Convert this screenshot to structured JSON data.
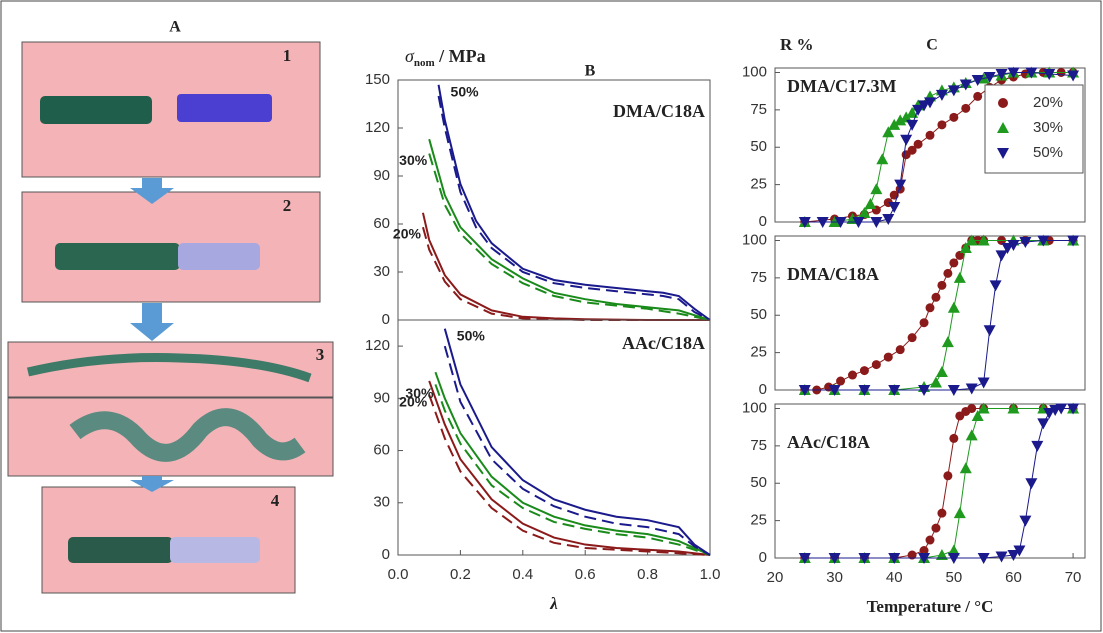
{
  "panel_a": {
    "title": "A",
    "steps": [
      "1",
      "2",
      "3",
      "4"
    ]
  },
  "chart_data": [
    {
      "type": "line",
      "panel": "B",
      "label": "DMA/C18A",
      "y_label": [
        "σ",
        "nom",
        " / MPa"
      ],
      "xlim": [
        0,
        1
      ],
      "ylim": [
        0,
        150
      ],
      "yticks": [
        0,
        30,
        60,
        90,
        120,
        150
      ],
      "series": [
        {
          "name": "20%",
          "color": "#8b1a1a",
          "x": [
            0.08,
            0.1,
            0.15,
            0.2,
            0.3,
            0.4,
            0.5,
            0.6,
            0.8,
            1.0
          ],
          "values": [
            67,
            50,
            28,
            16,
            6,
            2,
            1,
            0.5,
            0,
            0
          ],
          "dashed_values": [
            58,
            44,
            24,
            13,
            4,
            1,
            0.5,
            0,
            0,
            0
          ]
        },
        {
          "name": "30%",
          "color": "#1a8a1a",
          "x": [
            0.1,
            0.15,
            0.2,
            0.3,
            0.4,
            0.5,
            0.6,
            0.7,
            0.8,
            0.9,
            0.95,
            1.0
          ],
          "values": [
            113,
            78,
            58,
            38,
            26,
            17,
            13,
            10,
            8,
            6,
            3,
            0
          ],
          "dashed_values": [
            104,
            72,
            54,
            35,
            23,
            15,
            11,
            9,
            7,
            4,
            2,
            0
          ]
        },
        {
          "name": "50%",
          "color": "#1a1a8c",
          "x": [
            0.13,
            0.15,
            0.2,
            0.25,
            0.3,
            0.4,
            0.5,
            0.6,
            0.7,
            0.8,
            0.85,
            0.9,
            0.95,
            1.0
          ],
          "values": [
            147,
            125,
            85,
            62,
            48,
            32,
            25,
            22,
            20,
            18,
            17,
            15,
            7,
            0
          ],
          "dashed_values": [
            140,
            120,
            80,
            58,
            45,
            30,
            23,
            20,
            18,
            16,
            15,
            13,
            5,
            0
          ]
        }
      ]
    },
    {
      "type": "line",
      "label": "AAc/C18A",
      "x_label": "λ",
      "xlim": [
        0,
        1
      ],
      "ylim": [
        0,
        135
      ],
      "yticks": [
        0,
        30,
        60,
        90,
        120
      ],
      "xticks": [
        {
          "value": 0,
          "label": "0.0"
        },
        0.2,
        0.4,
        0.6,
        0.8,
        {
          "value": 1,
          "label": "1.0"
        }
      ],
      "series": [
        {
          "name": "20%",
          "color": "#8b1a1a",
          "x": [
            0.1,
            0.15,
            0.2,
            0.3,
            0.4,
            0.5,
            0.6,
            0.7,
            0.8,
            0.9,
            1.0
          ],
          "values": [
            100,
            75,
            55,
            32,
            18,
            10,
            6,
            4,
            3,
            2,
            0
          ],
          "dashed_values": [
            92,
            67,
            48,
            27,
            14,
            7,
            4,
            3,
            2,
            1,
            0
          ]
        },
        {
          "name": "30%",
          "color": "#1a8a1a",
          "x": [
            0.12,
            0.15,
            0.2,
            0.3,
            0.4,
            0.5,
            0.6,
            0.7,
            0.8,
            0.9,
            1.0
          ],
          "values": [
            105,
            90,
            70,
            45,
            30,
            22,
            17,
            14,
            12,
            8,
            0
          ],
          "dashed_values": [
            98,
            83,
            64,
            40,
            27,
            19,
            15,
            12,
            10,
            6,
            0
          ]
        },
        {
          "name": "50%",
          "color": "#1a1a8c",
          "x": [
            0.15,
            0.2,
            0.3,
            0.4,
            0.5,
            0.6,
            0.7,
            0.8,
            0.9,
            0.95,
            1.0
          ],
          "values": [
            130,
            98,
            62,
            43,
            32,
            26,
            22,
            20,
            16,
            6,
            0
          ],
          "dashed_values": [
            120,
            88,
            55,
            38,
            28,
            22,
            18,
            16,
            12,
            5,
            0
          ]
        }
      ]
    },
    {
      "type": "scatter",
      "panel": "C",
      "label": "DMA/C17.3M",
      "y_label": "R %",
      "legend": "upper right",
      "xlim": [
        20,
        72
      ],
      "ylim": [
        0,
        103
      ],
      "yticks": [
        0,
        25,
        50,
        75,
        100
      ],
      "series": [
        {
          "name": "20%",
          "color": "#8b1a1a",
          "marker": "circle",
          "x": [
            25,
            30,
            33,
            35,
            37,
            39,
            40,
            41,
            42,
            43,
            44,
            46,
            48,
            50,
            52,
            54,
            56,
            58,
            60,
            62,
            65,
            68,
            70
          ],
          "values": [
            0,
            2,
            4,
            5,
            8,
            13,
            18,
            22,
            45,
            48,
            52,
            58,
            65,
            70,
            76,
            84,
            90,
            95,
            97,
            99,
            100,
            100,
            100
          ]
        },
        {
          "name": "30%",
          "color": "#1f9a1f",
          "marker": "triangle-up",
          "x": [
            25,
            30,
            33,
            35,
            36,
            37,
            38,
            39,
            40,
            41,
            42,
            43,
            44,
            46,
            48,
            50,
            52,
            55,
            58,
            60,
            63,
            66,
            70
          ],
          "values": [
            0,
            0,
            2,
            6,
            12,
            22,
            42,
            60,
            65,
            68,
            70,
            73,
            78,
            84,
            88,
            90,
            93,
            96,
            98,
            100,
            100,
            100,
            100
          ]
        },
        {
          "name": "50%",
          "color": "#1a1a8c",
          "marker": "triangle-down",
          "x": [
            25,
            28,
            31,
            34,
            37,
            39,
            40,
            41,
            42,
            43,
            44,
            45,
            46,
            48,
            50,
            52,
            54,
            56,
            58,
            60,
            63,
            66,
            70
          ],
          "values": [
            0,
            0,
            0,
            0,
            0,
            2,
            10,
            25,
            55,
            65,
            75,
            78,
            80,
            85,
            88,
            92,
            95,
            97,
            99,
            100,
            100,
            99,
            98
          ]
        }
      ]
    },
    {
      "type": "scatter",
      "label": "DMA/C18A",
      "xlim": [
        20,
        72
      ],
      "ylim": [
        0,
        103
      ],
      "yticks": [
        0,
        25,
        50,
        75,
        100
      ],
      "series": [
        {
          "color": "#8b1a1a",
          "marker": "circle",
          "x": [
            25,
            27,
            29,
            31,
            33,
            35,
            37,
            39,
            41,
            43,
            45,
            46,
            47,
            48,
            49,
            50,
            51,
            52,
            53,
            54,
            55,
            58,
            62,
            66,
            70
          ],
          "values": [
            0,
            0,
            2,
            6,
            10,
            13,
            17,
            22,
            27,
            35,
            45,
            55,
            62,
            70,
            78,
            85,
            90,
            95,
            100,
            100,
            100,
            100,
            100,
            100,
            100
          ]
        },
        {
          "color": "#1f9a1f",
          "marker": "triangle-up",
          "x": [
            25,
            30,
            35,
            40,
            45,
            47,
            48,
            49,
            50,
            51,
            52,
            53,
            55,
            60,
            65,
            70
          ],
          "values": [
            0,
            0,
            0,
            0,
            2,
            5,
            12,
            32,
            55,
            75,
            95,
            100,
            100,
            100,
            100,
            100
          ]
        },
        {
          "color": "#1a1a8c",
          "marker": "triangle-down",
          "x": [
            25,
            30,
            35,
            40,
            45,
            50,
            53,
            55,
            56,
            57,
            58,
            59,
            60,
            62,
            65,
            70
          ],
          "values": [
            0,
            0,
            0,
            0,
            0,
            0,
            1,
            5,
            40,
            70,
            90,
            95,
            97,
            99,
            100,
            100
          ]
        }
      ]
    },
    {
      "type": "scatter",
      "label": "AAc/C18A",
      "x_label": "Temperature / °C",
      "xlim": [
        20,
        72
      ],
      "ylim": [
        0,
        103
      ],
      "yticks": [
        0,
        25,
        50,
        75,
        100
      ],
      "xticks": [
        20,
        30,
        40,
        50,
        60,
        70
      ],
      "series": [
        {
          "color": "#8b1a1a",
          "marker": "circle",
          "x": [
            25,
            30,
            35,
            40,
            43,
            45,
            46,
            47,
            48,
            49,
            50,
            51,
            52,
            53,
            55,
            60,
            65,
            70
          ],
          "values": [
            0,
            0,
            0,
            0,
            2,
            5,
            12,
            20,
            30,
            55,
            80,
            95,
            98,
            100,
            100,
            100,
            100,
            100
          ]
        },
        {
          "color": "#1f9a1f",
          "marker": "triangle-up",
          "x": [
            25,
            30,
            35,
            40,
            45,
            48,
            50,
            51,
            52,
            53,
            54,
            55,
            60,
            65,
            70
          ],
          "values": [
            0,
            0,
            0,
            0,
            0,
            2,
            5,
            30,
            60,
            82,
            95,
            100,
            100,
            100,
            100
          ]
        },
        {
          "color": "#1a1a8c",
          "marker": "triangle-down",
          "x": [
            25,
            30,
            35,
            40,
            45,
            50,
            55,
            58,
            60,
            61,
            62,
            63,
            64,
            65,
            66,
            67,
            68,
            70
          ],
          "values": [
            0,
            0,
            0,
            0,
            0,
            0,
            0,
            1,
            2,
            5,
            25,
            50,
            75,
            90,
            97,
            99,
            100,
            100
          ]
        }
      ]
    }
  ]
}
